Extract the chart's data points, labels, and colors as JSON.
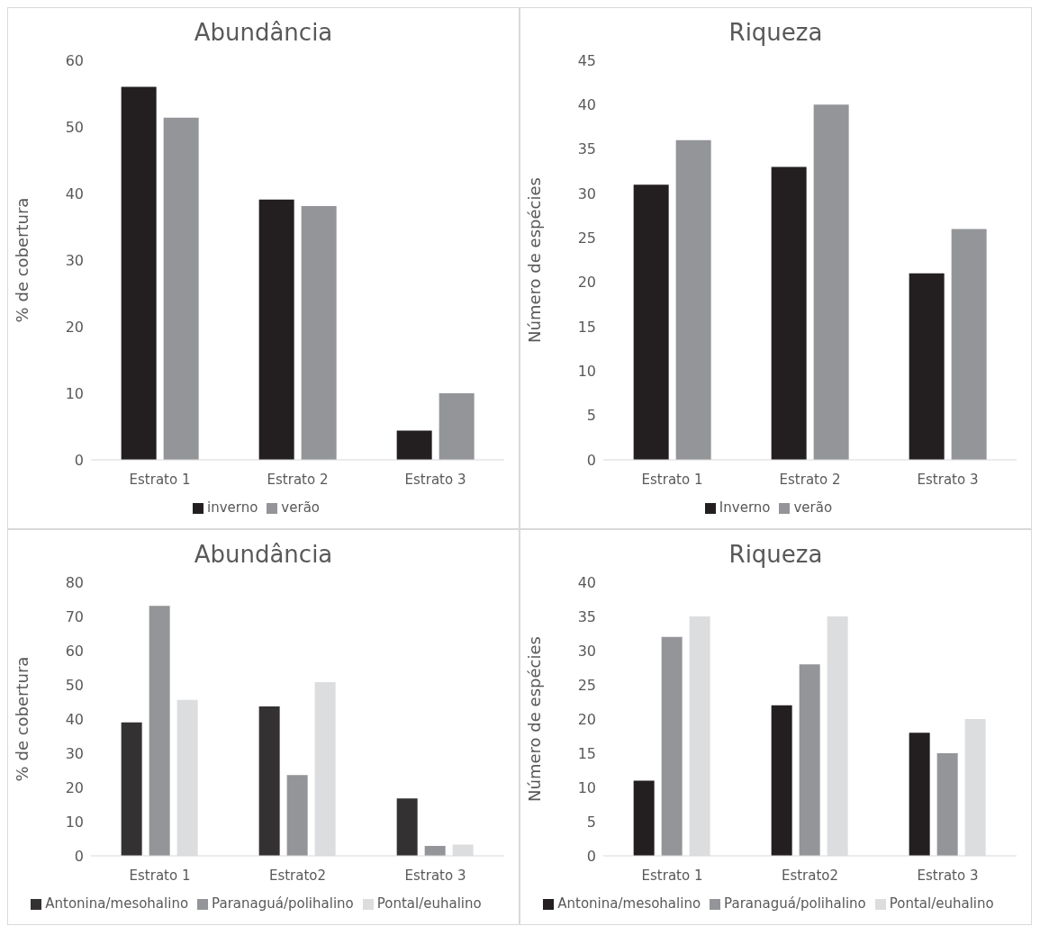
{
  "chart_data": [
    {
      "type": "bar",
      "title": "Abundância",
      "ylabel": "% de cobertura",
      "categories": [
        "Estrato 1",
        "Estrato 2",
        "Estrato 3"
      ],
      "series": [
        {
          "name": "inverno",
          "color": "#231f20",
          "values": [
            56,
            39.1,
            4.4
          ]
        },
        {
          "name": "verão",
          "color": "#939598",
          "values": [
            51.4,
            38.1,
            10
          ]
        }
      ],
      "ylim": [
        0,
        60
      ],
      "yticks": [
        0,
        10,
        20,
        30,
        40,
        50,
        60
      ],
      "legend": "bottom",
      "grid": false
    },
    {
      "type": "bar",
      "title": "Riqueza",
      "ylabel": "Número de espécies",
      "categories": [
        "Estrato 1",
        "Estrato 2",
        "Estrato 3"
      ],
      "series": [
        {
          "name": "Inverno",
          "color": "#231f20",
          "values": [
            31,
            33,
            21
          ]
        },
        {
          "name": "verão",
          "color": "#939598",
          "values": [
            36,
            40,
            26
          ]
        }
      ],
      "ylim": [
        0,
        45
      ],
      "yticks": [
        0,
        5,
        10,
        15,
        20,
        25,
        30,
        35,
        40,
        45
      ],
      "legend": "bottom",
      "grid": false
    },
    {
      "type": "bar",
      "title": "Abundância",
      "ylabel": "% de cobertura",
      "categories": [
        "Estrato 1",
        "Estrato2",
        "Estrato 3"
      ],
      "series": [
        {
          "name": "Antonina/mesohalino",
          "color": "#333132",
          "values": [
            39,
            43.7,
            16.8
          ]
        },
        {
          "name": "Paranaguá/polihalino",
          "color": "#939598",
          "values": [
            73.1,
            23.6,
            2.9
          ]
        },
        {
          "name": "Pontal/euhalino",
          "color": "#dcddde",
          "values": [
            45.6,
            50.8,
            3.3
          ]
        }
      ],
      "ylim": [
        0,
        80
      ],
      "yticks": [
        0,
        10,
        20,
        30,
        40,
        50,
        60,
        70,
        80
      ],
      "legend": "bottom",
      "grid": false
    },
    {
      "type": "bar",
      "title": "Riqueza",
      "ylabel": "Número de espécies",
      "categories": [
        "Estrato 1",
        "Estrato2",
        "Estrato 3"
      ],
      "series": [
        {
          "name": "Antonina/mesohalino",
          "color": "#231f20",
          "values": [
            11,
            22,
            18
          ]
        },
        {
          "name": "Paranaguá/polihalino",
          "color": "#939598",
          "values": [
            32,
            28,
            15
          ]
        },
        {
          "name": "Pontal/euhalino",
          "color": "#dcddde",
          "values": [
            35,
            35,
            20
          ]
        }
      ],
      "ylim": [
        0,
        40
      ],
      "yticks": [
        0,
        5,
        10,
        15,
        20,
        25,
        30,
        35,
        40
      ],
      "legend": "bottom",
      "grid": false
    }
  ]
}
